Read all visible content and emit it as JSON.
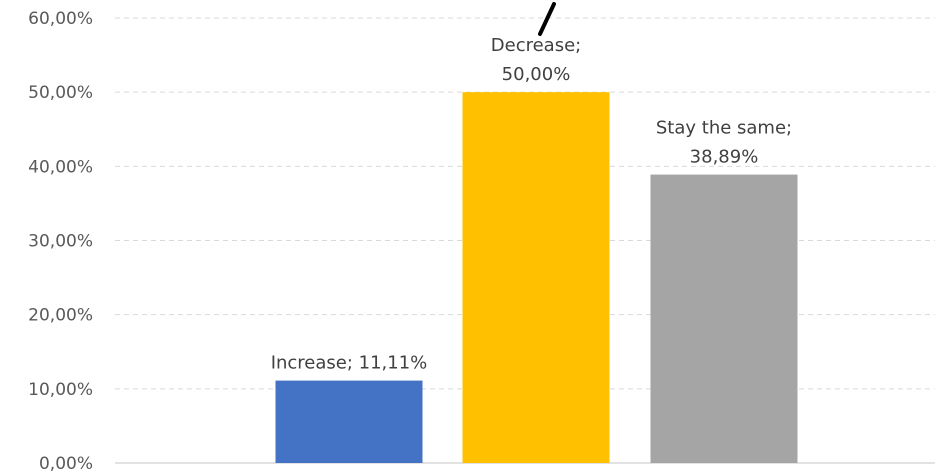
{
  "chart_data": {
    "type": "bar",
    "categories": [
      "Increase",
      "Decrease",
      "Stay the same"
    ],
    "values": [
      11.11,
      50.0,
      38.89
    ],
    "unit": "%",
    "ylim": [
      0,
      60
    ],
    "ytick_values": [
      0,
      10,
      20,
      30,
      40,
      50,
      60
    ],
    "ytick_labels": [
      "0,00%",
      "10,00%",
      "20,00%",
      "30,00%",
      "40,00%",
      "50,00%",
      "60,00%"
    ],
    "data_labels": [
      [
        "Increase; 11,11%"
      ],
      [
        "Decrease;",
        "50,00%"
      ],
      [
        "Stay the same;",
        "38,89%"
      ]
    ],
    "colors": [
      "#4472c4",
      "#ffc000",
      "#a5a5a5"
    ],
    "grid": true,
    "legend": "none"
  }
}
